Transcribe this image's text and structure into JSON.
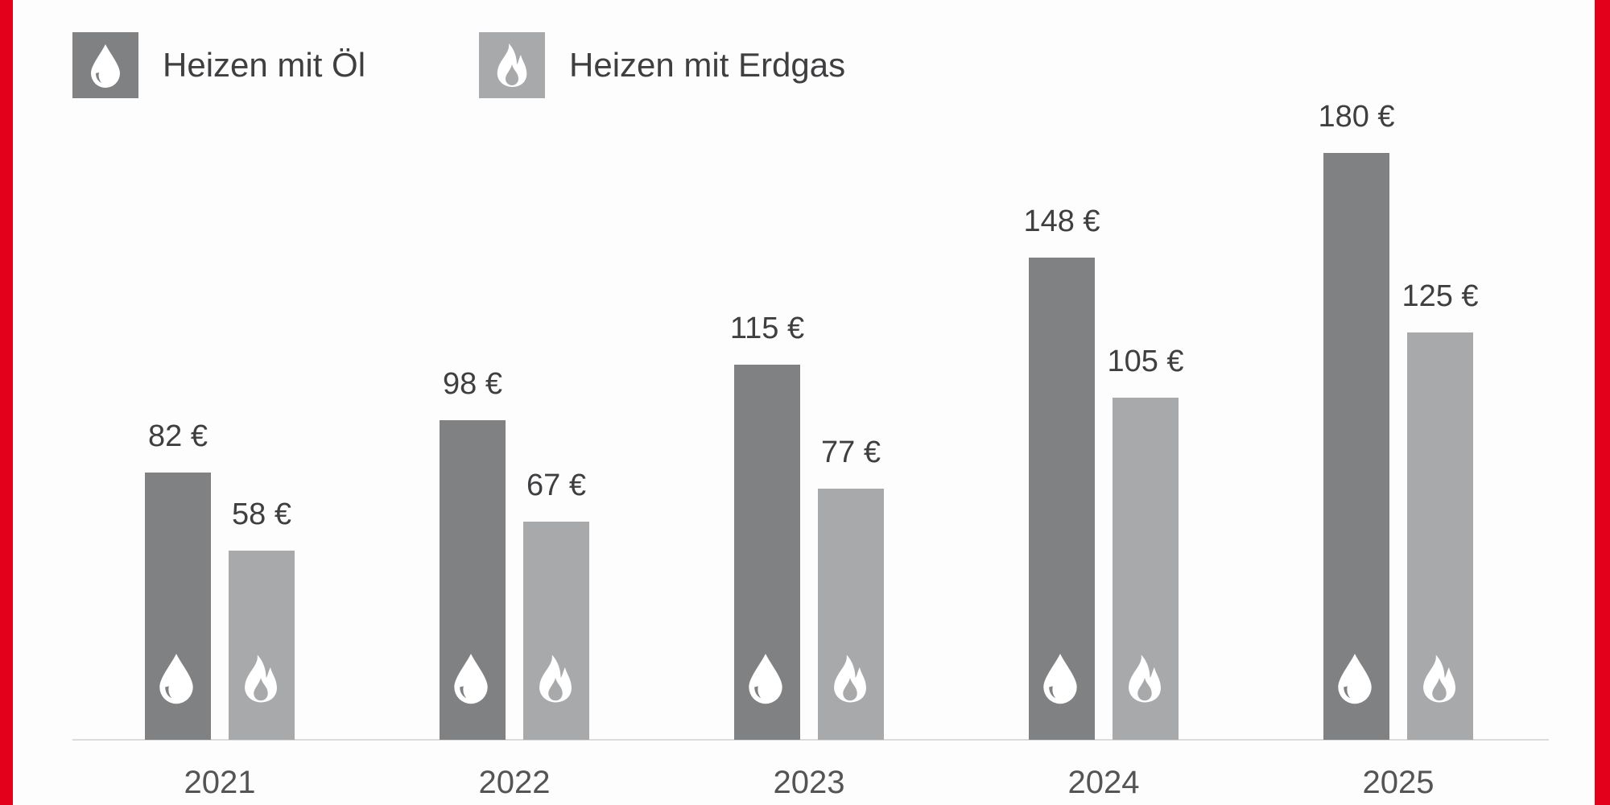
{
  "colors": {
    "frame": "#e2001a",
    "oil": "#808183",
    "gas": "#a8a9ab",
    "text": "#3f3f41",
    "baseline": "#dcdcdc"
  },
  "legend": [
    {
      "label": "Heizen mit Öl",
      "icon": "oil-drop-icon",
      "color": "#808183"
    },
    {
      "label": "Heizen mit Erdgas",
      "icon": "gas-flame-icon",
      "color": "#a8a9ab"
    }
  ],
  "years": [
    "2021",
    "2022",
    "2023",
    "2024",
    "2025"
  ],
  "labels": {
    "oil": [
      "82 €",
      "98 €",
      "115 €",
      "148 €",
      "180 €"
    ],
    "gas": [
      "58 €",
      "67 €",
      "77 €",
      "105 €",
      "125 €"
    ]
  },
  "chart_data": {
    "type": "bar",
    "title": "",
    "xlabel": "",
    "ylabel": "",
    "categories": [
      "2021",
      "2022",
      "2023",
      "2024",
      "2025"
    ],
    "series": [
      {
        "name": "Heizen mit Öl",
        "values": [
          82,
          98,
          115,
          148,
          180
        ],
        "color": "#808183",
        "unit": "€"
      },
      {
        "name": "Heizen mit Erdgas",
        "values": [
          58,
          67,
          77,
          105,
          125
        ],
        "color": "#a8a9ab",
        "unit": "€"
      }
    ],
    "ylim": [
      0,
      180
    ],
    "grid": false,
    "y_axis_visible": false,
    "data_labels": true,
    "legend_position": "top-left"
  }
}
